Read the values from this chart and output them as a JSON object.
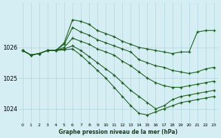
{
  "xlabel": "Graphe pression niveau de la mer (hPa)",
  "background_color": "#d4eef4",
  "grid_color": "#b0d4dc",
  "line_color": "#1a5c1a",
  "xlim": [
    -0.5,
    23.5
  ],
  "ylim": [
    1023.55,
    1027.45
  ],
  "yticks": [
    1024,
    1025,
    1026
  ],
  "xticks": [
    0,
    1,
    2,
    3,
    4,
    5,
    6,
    7,
    8,
    9,
    10,
    11,
    12,
    13,
    14,
    15,
    16,
    17,
    18,
    19,
    20,
    21,
    22,
    23
  ],
  "series": [
    [
      1025.9,
      1025.75,
      1025.8,
      1025.9,
      1025.9,
      1026.15,
      1026.9,
      1026.85,
      1026.75,
      1026.55,
      1026.45,
      1026.35,
      1026.2,
      1026.1,
      1026.0,
      1025.95,
      1025.9,
      1025.85,
      1025.8,
      1025.85,
      1025.85,
      1026.5,
      1026.55,
      1026.55
    ],
    [
      1025.9,
      1025.75,
      1025.8,
      1025.9,
      1025.9,
      1026.1,
      1026.65,
      1026.5,
      1026.4,
      1026.25,
      1026.15,
      1026.05,
      1025.95,
      1025.85,
      1025.6,
      1025.5,
      1025.4,
      1025.35,
      1025.25,
      1025.2,
      1025.15,
      1025.2,
      1025.3,
      1025.35
    ],
    [
      1025.9,
      1025.75,
      1025.8,
      1025.9,
      1025.9,
      1026.0,
      1026.3,
      1026.2,
      1026.1,
      1025.95,
      1025.85,
      1025.75,
      1025.55,
      1025.4,
      1025.2,
      1025.0,
      1024.85,
      1024.75,
      1024.7,
      1024.7,
      1024.75,
      1024.8,
      1024.85,
      1024.9
    ],
    [
      1025.9,
      1025.75,
      1025.8,
      1025.9,
      1025.9,
      1025.95,
      1026.05,
      1025.9,
      1025.7,
      1025.5,
      1025.3,
      1025.1,
      1024.85,
      1024.6,
      1024.4,
      1024.2,
      1024.0,
      1024.1,
      1024.3,
      1024.4,
      1024.45,
      1024.5,
      1024.55,
      1024.6
    ],
    [
      1025.9,
      1025.75,
      1025.8,
      1025.9,
      1025.9,
      1025.92,
      1025.95,
      1025.75,
      1025.5,
      1025.25,
      1025.0,
      1024.7,
      1024.4,
      1024.1,
      1023.85,
      1023.8,
      1023.9,
      1024.0,
      1024.1,
      1024.2,
      1024.25,
      1024.3,
      1024.35,
      1024.4
    ]
  ]
}
